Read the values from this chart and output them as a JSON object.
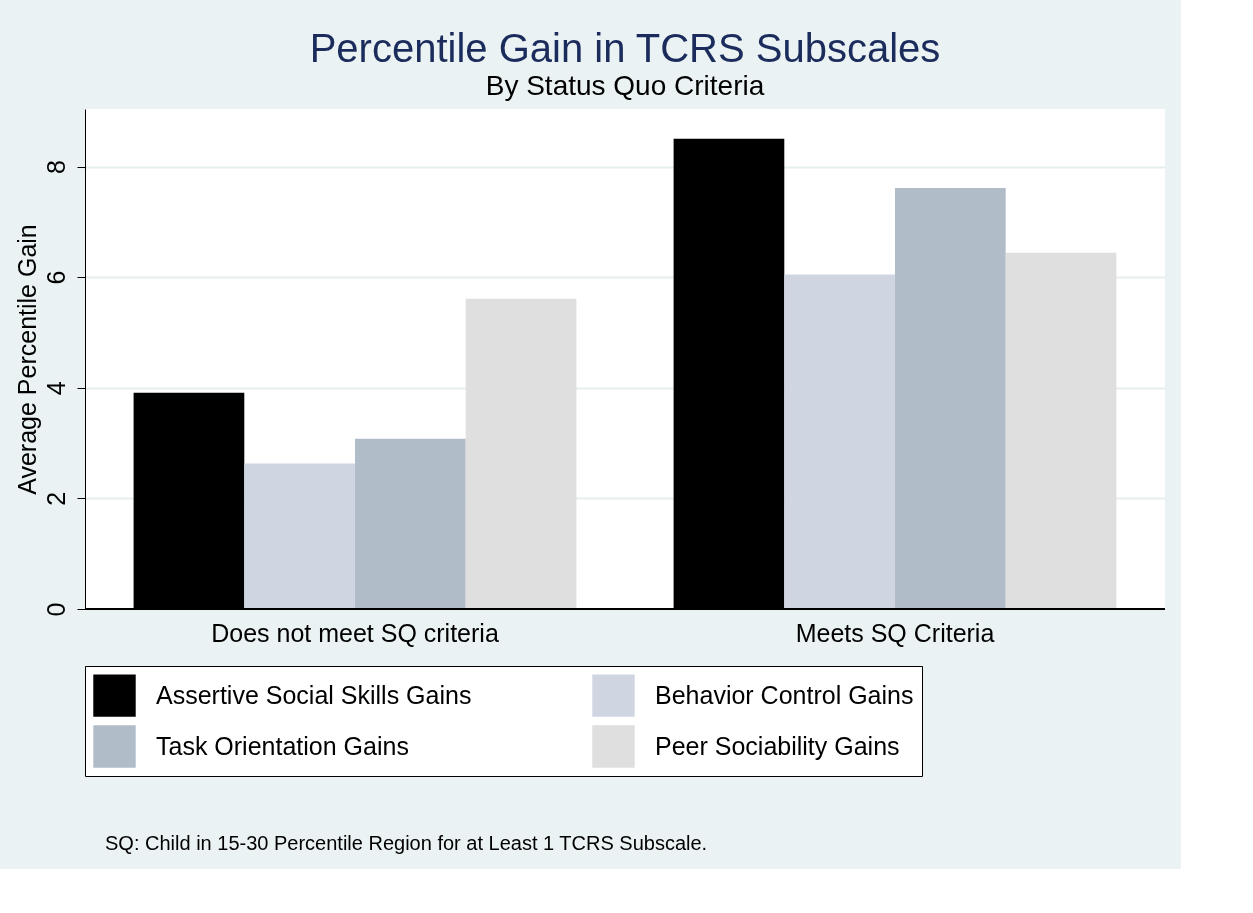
{
  "chart_data": {
    "type": "bar",
    "title": "Percentile Gain in TCRS Subscales",
    "subtitle": "By Status Quo Criteria",
    "ylabel": "Average Percentile Gain",
    "categories": [
      "Does not meet SQ criteria",
      "Meets SQ Criteria"
    ],
    "series": [
      {
        "name": "Assertive Social Skills Gains",
        "color": "#000000",
        "values": [
          3.91,
          8.5
        ]
      },
      {
        "name": "Behavior Control Gains",
        "color": "#d0d6e1",
        "values": [
          2.63,
          6.05
        ]
      },
      {
        "name": "Task Orientation Gains",
        "color": "#b1bcc9",
        "values": [
          3.08,
          7.61
        ]
      },
      {
        "name": "Peer Sociability Gains",
        "color": "#dfdfdf",
        "values": [
          5.61,
          6.44
        ]
      }
    ],
    "ylim": [
      0,
      9.04
    ],
    "yticks": [
      0,
      2,
      4,
      6,
      8
    ],
    "grid": "y",
    "legend": "bottom",
    "annotations": [
      "SQ: Child in 15-30 Percentile Region for at Least 1 TCRS Subscale."
    ]
  }
}
